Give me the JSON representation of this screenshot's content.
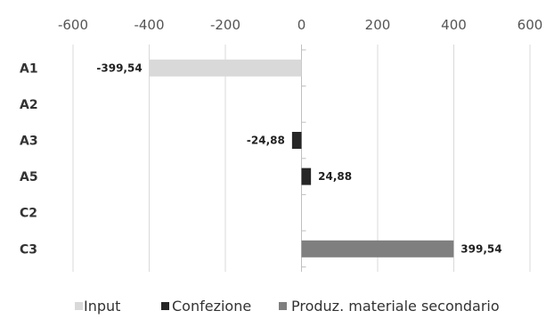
{
  "chart_data": {
    "type": "bar",
    "orientation": "horizontal",
    "categories": [
      "A1",
      "A2",
      "A3",
      "A5",
      "C2",
      "C3"
    ],
    "series": [
      {
        "name": "Input",
        "color": "#d9d9d9",
        "values": [
          -399.54,
          0,
          0,
          0,
          0,
          0
        ]
      },
      {
        "name": "Confezione",
        "color": "#262626",
        "values": [
          0,
          0,
          -24.88,
          24.88,
          0,
          0
        ]
      },
      {
        "name": "Produz. materiale secondario",
        "color": "#7f7f7f",
        "values": [
          0,
          0,
          0,
          0,
          0,
          399.54
        ]
      }
    ],
    "data_labels": [
      "-399,54",
      "",
      "-24,88",
      "24,88",
      "",
      "399,54"
    ],
    "x_ticks": [
      "-600",
      "-400",
      "-200",
      "0",
      "200",
      "400",
      "600"
    ],
    "xlim": [
      -600,
      600
    ],
    "title": "",
    "xlabel": "",
    "ylabel": "",
    "grid": true,
    "legend_position": "bottom"
  }
}
